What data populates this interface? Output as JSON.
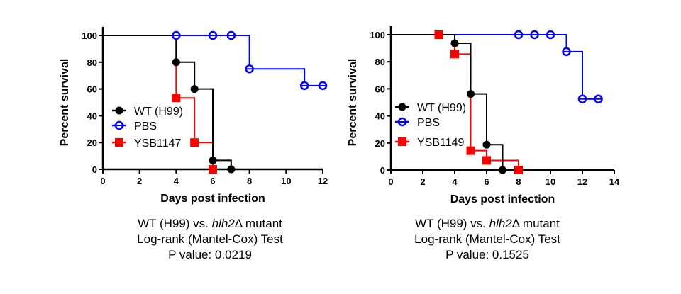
{
  "chart_data": [
    {
      "type": "line",
      "subtype": "kaplan-meier-step",
      "title": "",
      "xlabel": "Days post infection",
      "ylabel": "Percent survival",
      "xlim": [
        0,
        12
      ],
      "ylim": [
        0,
        100
      ],
      "xticks": [
        0,
        2,
        4,
        6,
        8,
        10,
        12
      ],
      "yticks": [
        0,
        20,
        40,
        60,
        80,
        100
      ],
      "xtick_labels": [
        "0",
        "2",
        "4",
        "6",
        "8",
        "10",
        "12"
      ],
      "ytick_labels": [
        "0",
        "20",
        "40",
        "60",
        "80",
        "100"
      ],
      "grid": false,
      "legend_position": "middle-left",
      "series": [
        {
          "name": "WT (H99)",
          "color": "#000000",
          "marker": "filled-circle",
          "steps": [
            [
              0,
              100
            ],
            [
              4,
              80
            ],
            [
              5,
              60
            ],
            [
              6,
              6.67
            ],
            [
              7,
              0
            ]
          ],
          "markers": [
            [
              4,
              80
            ],
            [
              5,
              60
            ],
            [
              6,
              6.67
            ],
            [
              7,
              0
            ]
          ]
        },
        {
          "name": "PBS",
          "color": "#0000ff",
          "marker": "open-circle",
          "steps": [
            [
              0,
              100
            ],
            [
              8,
              75
            ],
            [
              11,
              62.5
            ]
          ],
          "end": 12,
          "markers": [
            [
              4,
              100
            ],
            [
              6,
              100
            ],
            [
              7,
              100
            ],
            [
              8,
              75
            ],
            [
              11,
              62.5
            ],
            [
              12,
              62.5
            ]
          ]
        },
        {
          "name": "YSB1147",
          "color": "#ff0000",
          "marker": "filled-square",
          "steps": [
            [
              0,
              100
            ],
            [
              4,
              53.3
            ],
            [
              5,
              20
            ],
            [
              6,
              0
            ]
          ],
          "markers": [
            [
              4,
              53.3
            ],
            [
              5,
              20
            ],
            [
              6,
              0
            ]
          ]
        }
      ]
    },
    {
      "type": "line",
      "subtype": "kaplan-meier-step",
      "title": "",
      "xlabel": "Days post infection",
      "ylabel": "Percent survival",
      "xlim": [
        0,
        14
      ],
      "ylim": [
        0,
        100
      ],
      "xticks": [
        0,
        2,
        4,
        6,
        8,
        10,
        12,
        14
      ],
      "yticks": [
        0,
        20,
        40,
        60,
        80,
        100
      ],
      "xtick_labels": [
        "0",
        "2",
        "4",
        "6",
        "8",
        "10",
        "12",
        "14"
      ],
      "ytick_labels": [
        "0",
        "20",
        "40",
        "60",
        "80",
        "100"
      ],
      "grid": false,
      "legend_position": "middle-left",
      "series": [
        {
          "name": "WT (H99)",
          "color": "#000000",
          "marker": "filled-circle",
          "steps": [
            [
              0,
              100
            ],
            [
              4,
              93.75
            ],
            [
              5,
              56.25
            ],
            [
              6,
              18.75
            ],
            [
              7,
              0
            ]
          ],
          "markers": [
            [
              4,
              93.75
            ],
            [
              5,
              56.25
            ],
            [
              6,
              18.75
            ],
            [
              7,
              0
            ]
          ]
        },
        {
          "name": "PBS",
          "color": "#0000ff",
          "marker": "open-circle",
          "steps": [
            [
              0,
              100
            ],
            [
              11,
              87.5
            ],
            [
              12,
              52.5
            ]
          ],
          "end": 13,
          "markers": [
            [
              8,
              100
            ],
            [
              9,
              100
            ],
            [
              10,
              100
            ],
            [
              11,
              87.5
            ],
            [
              12,
              52.5
            ],
            [
              13,
              52.5
            ]
          ]
        },
        {
          "name": "YSB1149",
          "color": "#ff0000",
          "marker": "filled-square",
          "steps": [
            [
              0,
              100
            ],
            [
              4,
              85.7
            ],
            [
              5,
              14.3
            ],
            [
              6,
              7.1
            ],
            [
              8,
              0
            ]
          ],
          "markers": [
            [
              3,
              100
            ],
            [
              4,
              85.7
            ],
            [
              5,
              14.3
            ],
            [
              6,
              7.1
            ],
            [
              8,
              0
            ]
          ]
        }
      ]
    }
  ],
  "captions": [
    {
      "line1_prefix": "WT (H99) vs. ",
      "line1_italic": "hlh2",
      "line1_suffix": "Δ mutant",
      "line2": "Log-rank (Mantel-Cox) Test",
      "line3": "P value: 0.0219"
    },
    {
      "line1_prefix": "WT (H99) vs. ",
      "line1_italic": "hlh2",
      "line1_suffix": "Δ mutant",
      "line2": "Log-rank (Mantel-Cox) Test",
      "line3": "P value: 0.1525"
    }
  ]
}
